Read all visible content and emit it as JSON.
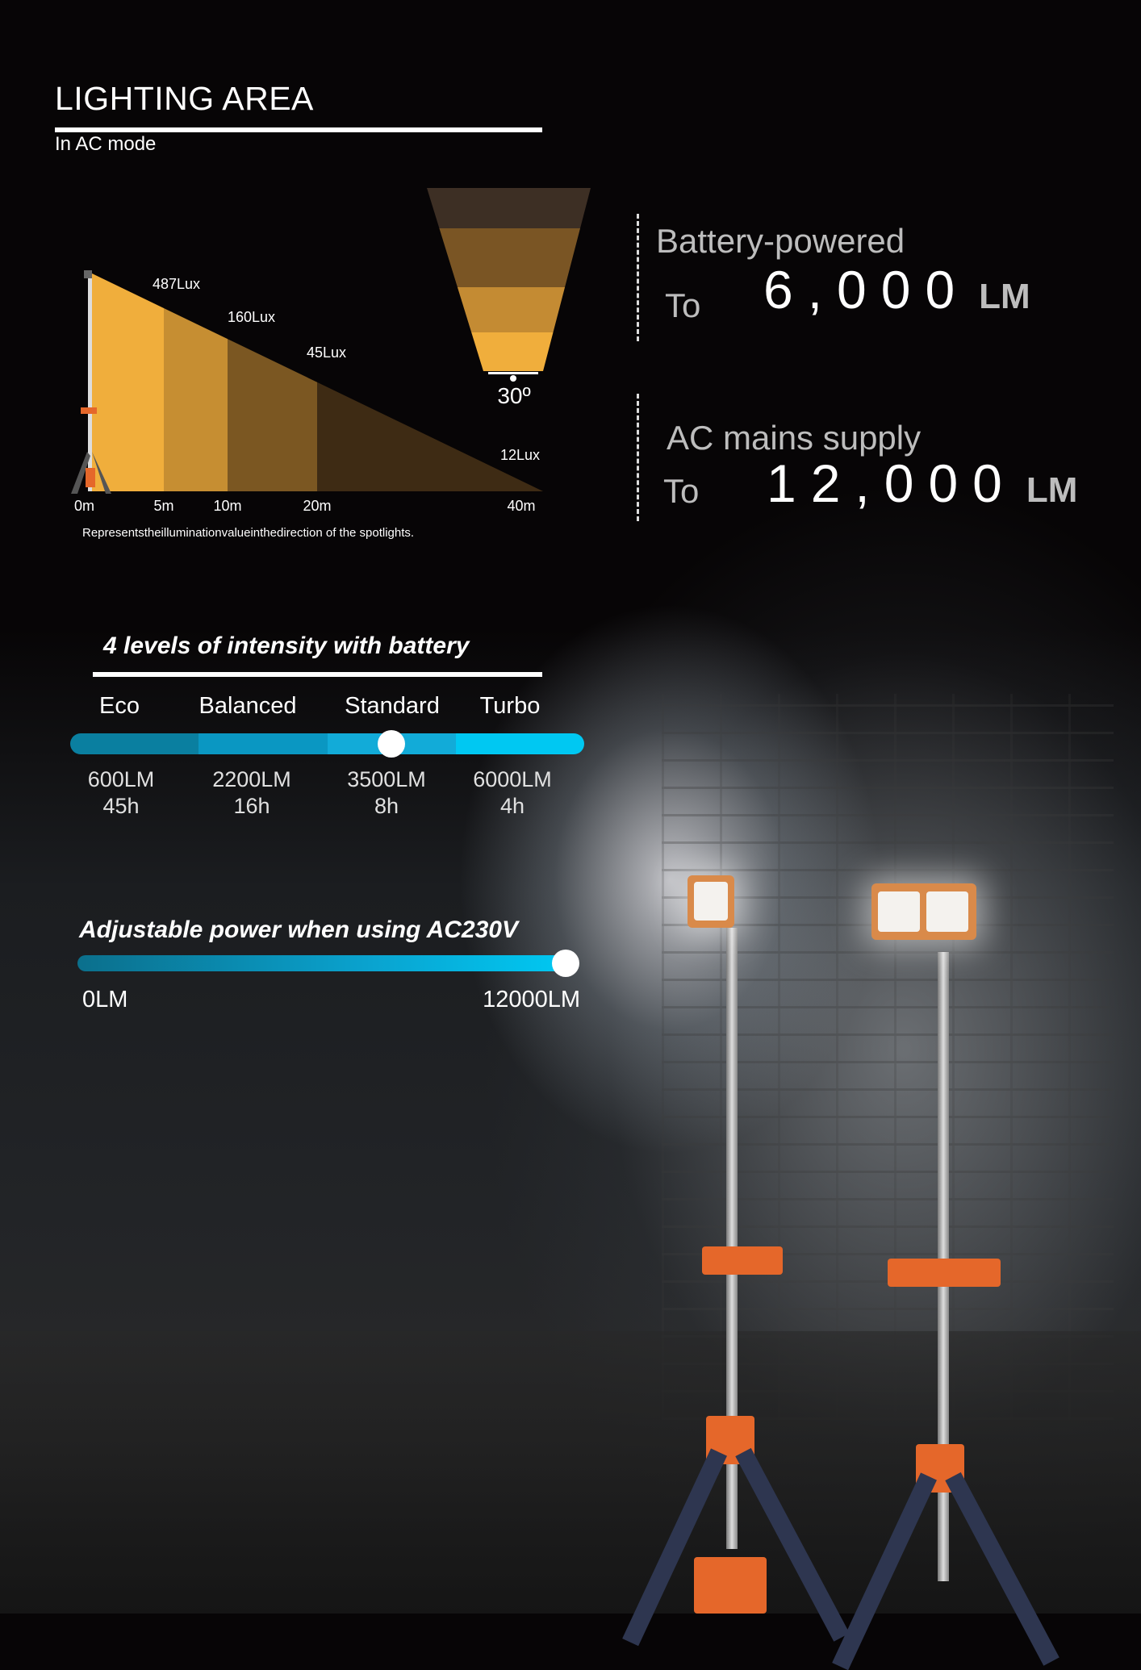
{
  "header": {
    "title": "LIGHTING AREA",
    "subtitle": "In AC mode"
  },
  "chart_data": {
    "type": "area",
    "title": "",
    "x_unit": "m",
    "distances": [
      0,
      5,
      10,
      20,
      40
    ],
    "tick_labels": [
      "0m",
      "5m",
      "10m",
      "20m",
      "40m"
    ],
    "lux_labels": [
      "487Lux",
      "160Lux",
      "45Lux",
      "12Lux"
    ],
    "lux_values": [
      487,
      160,
      45,
      12
    ],
    "band_colors": [
      "#f0ae3c",
      "#c68e32",
      "#7b5722",
      "#3e2b14"
    ],
    "caption": "Representstheilluminationvalueinthedirection of the spotlights.",
    "beam_angle_label": "30º",
    "beam_colors": [
      "#f0ae3c",
      "#c48b33",
      "#7a5524",
      "#3d2f24"
    ]
  },
  "output": {
    "battery": {
      "label": "Battery-powered",
      "prefix": "To",
      "value": "6,000",
      "unit": "LM"
    },
    "ac": {
      "label": "AC mains supply",
      "prefix": "To",
      "value": "12,000",
      "unit": "LM"
    }
  },
  "battery_levels": {
    "title": "4 levels of intensity with battery",
    "selected": "Standard",
    "segment_colors": [
      "#0a7fa0",
      "#0a97c2",
      "#12abd8",
      "#00c8f2"
    ],
    "levels": [
      {
        "name": "Eco",
        "lumens": "600LM",
        "runtime": "45h"
      },
      {
        "name": "Balanced",
        "lumens": "2200LM",
        "runtime": "16h"
      },
      {
        "name": "Standard",
        "lumens": "3500LM",
        "runtime": "8h"
      },
      {
        "name": "Turbo",
        "lumens": "6000LM",
        "runtime": "4h"
      }
    ]
  },
  "ac_power": {
    "title": "Adjustable power when using AC230V",
    "min_label": "0LM",
    "max_label": "12000LM",
    "level_fraction": 1.0
  }
}
